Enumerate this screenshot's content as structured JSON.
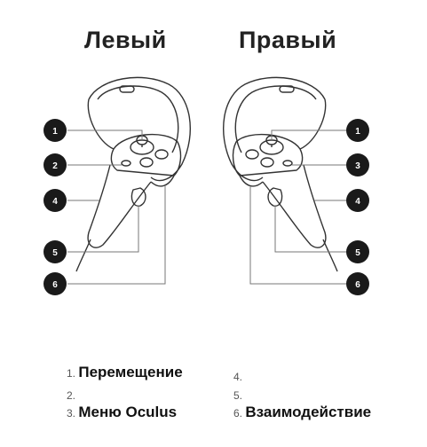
{
  "headings": {
    "left": "Левый",
    "right": "Правый"
  },
  "left_callouts": [
    "1",
    "2",
    "4",
    "5",
    "6"
  ],
  "right_callouts": [
    "1",
    "3",
    "4",
    "5",
    "6"
  ],
  "legend": [
    {
      "num": "1.",
      "label": "Перемещение"
    },
    {
      "num": "2.",
      "label": ""
    },
    {
      "num": "3.",
      "label": "Меню Oculus"
    },
    {
      "num": "4.",
      "label": ""
    },
    {
      "num": "5.",
      "label": ""
    },
    {
      "num": "6.",
      "label": "Взаимодействие"
    }
  ],
  "colors": {
    "badge": "#1a1a1a",
    "outline": "#333333",
    "leader": "#777777"
  }
}
